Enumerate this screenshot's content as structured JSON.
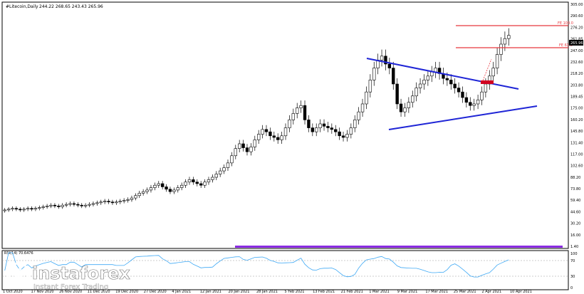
{
  "header": {
    "title": "#Litecoin,Daily",
    "ohlc": "244.22 268.65 243.43 265.96"
  },
  "rsi_panel": {
    "label": "RSI(14) 70.6476",
    "ticks": [
      "100",
      "70",
      "30",
      "0"
    ]
  },
  "levels": [
    {
      "price": 290.5,
      "label": "FE 100.0",
      "color": "#e8383f"
    },
    {
      "price": 263.1,
      "label": "FE 61.8",
      "color": "#e8383f"
    }
  ],
  "current_price": "265.96",
  "colors": {
    "trendline": "#1f25d6",
    "rsi_line": "#3fa9f5",
    "fib": "#e8383f",
    "zone": "#d00020",
    "band": "#8a2be2"
  },
  "watermark": {
    "brand": "instaforex",
    "tagline": "Instant Forex Trading"
  },
  "chart_data": {
    "type": "candlestick",
    "title": "#Litecoin,Daily",
    "y_ticks": [
      "305.00",
      "290.60",
      "276.20",
      "261.85",
      "247.00",
      "232.60",
      "218.20",
      "203.80",
      "189.45",
      "175.00",
      "160.20",
      "145.80",
      "131.40",
      "117.00",
      "102.60",
      "88.20",
      "73.80",
      "59.40",
      "44.60",
      "30.20",
      "16.00",
      "1.40"
    ],
    "ylim": [
      1.4,
      305
    ],
    "x_ticks": [
      "1 Oct 2020",
      "17 Nov 2020",
      "26 Nov 2020",
      "11 Dec 2020",
      "19 Dec 2020",
      "27 Dec 2020",
      "4 Jan 2021",
      "12 Jan 2021",
      "20 Jan 2021",
      "28 Jan 2021",
      "5 Feb 2021",
      "13 Feb 2021",
      "21 Feb 2021",
      "1 Mar 2021",
      "9 Mar 2021",
      "17 Mar 2021",
      "25 Mar 2021",
      "2 Apr 2021",
      "10 Apr 2021"
    ],
    "closes": [
      47,
      48,
      49,
      48,
      47,
      48,
      49,
      48,
      49,
      50,
      51,
      52,
      53,
      52,
      51,
      53,
      54,
      55,
      54,
      53,
      52,
      53,
      54,
      55,
      56,
      57,
      58,
      57,
      56,
      57,
      58,
      59,
      60,
      62,
      65,
      68,
      70,
      72,
      75,
      78,
      80,
      76,
      73,
      70,
      72,
      75,
      78,
      82,
      85,
      82,
      80,
      78,
      82,
      85,
      88,
      92,
      96,
      100,
      106,
      115,
      124,
      130,
      125,
      120,
      126,
      135,
      142,
      148,
      145,
      140,
      138,
      135,
      140,
      150,
      160,
      168,
      175,
      178,
      160,
      150,
      145,
      150,
      155,
      152,
      150,
      148,
      145,
      140,
      138,
      142,
      150,
      160,
      170,
      180,
      195,
      210,
      225,
      235,
      240,
      230,
      225,
      205,
      180,
      170,
      175,
      182,
      190,
      200,
      205,
      210,
      215,
      220,
      225,
      218,
      212,
      210,
      205,
      200,
      195,
      188,
      182,
      178,
      180,
      185,
      195,
      205,
      215,
      225,
      242,
      255,
      262,
      266
    ]
  }
}
